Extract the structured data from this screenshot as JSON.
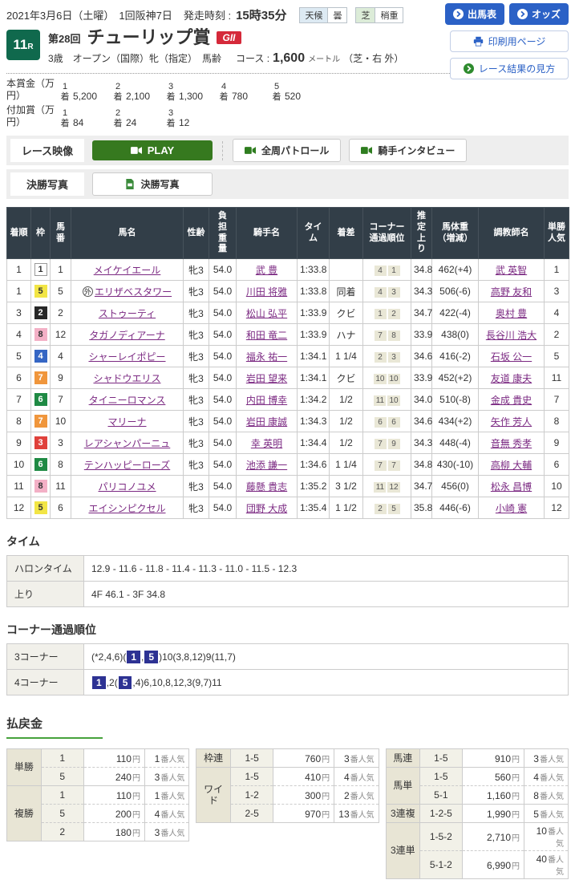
{
  "header": {
    "date": "2021年3月6日（土曜）",
    "meet": "1回阪神7日",
    "start_label": "発走時刻 :",
    "start_time": "15時35分",
    "weather_label": "天候",
    "weather_value": "曇",
    "turf_label": "芝",
    "turf_value": "稍重",
    "buttons": {
      "entries": "出馬表",
      "odds": "オッズ",
      "print": "印刷用ページ",
      "guide": "レース結果の見方"
    }
  },
  "race": {
    "number": "11",
    "r": "R",
    "edition": "第28回",
    "title": "チューリップ賞",
    "grade": "GII",
    "conditions": "3歳　オープン（国際）牝（指定）　馬齢",
    "course_label": "コース :",
    "distance": "1,600",
    "unit": "メートル",
    "detail": "（芝・右 外）"
  },
  "prize": {
    "main_label": "本賞金（万円）",
    "main": [
      {
        "place": "1\n着",
        "value": "5,200"
      },
      {
        "place": "2\n着",
        "value": "2,100"
      },
      {
        "place": "3\n着",
        "value": "1,300"
      },
      {
        "place": "4\n着",
        "value": "780"
      },
      {
        "place": "5\n着",
        "value": "520"
      }
    ],
    "addon_label": "付加賞（万円）",
    "addon": [
      {
        "place": "1\n着",
        "value": "84"
      },
      {
        "place": "2\n着",
        "value": "24"
      },
      {
        "place": "3\n着",
        "value": "12"
      }
    ]
  },
  "media": {
    "video_label": "レース映像",
    "play": "PLAY",
    "patrol": "全周パトロール",
    "interview": "騎手インタビュー",
    "photo_label": "決勝写真",
    "photo_button": "決勝写真"
  },
  "results": {
    "headers": [
      "着順",
      "枠",
      "馬\n番",
      "馬名",
      "性齢",
      "負\n担\n重\n量",
      "騎手名",
      "タイ\nム",
      "着差",
      "コーナー\n通過順位",
      "推\n定\n上\nり",
      "馬体重\n（増減）",
      "調教師名",
      "単勝\n人気"
    ],
    "rows": [
      {
        "pos": "1",
        "frame": "1",
        "num": "1",
        "mark": "",
        "horse": "メイケイエール",
        "sexage": "牝3",
        "weight": "54.0",
        "jockey": "武 豊",
        "time": "1:33.8",
        "margin": "",
        "corners": [
          "4",
          "1"
        ],
        "last3f": "34.8",
        "body": "462(+4)",
        "trainer": "武 英智",
        "pop": "1"
      },
      {
        "pos": "1",
        "frame": "5",
        "num": "5",
        "mark": "外",
        "horse": "エリザベスタワー",
        "sexage": "牝3",
        "weight": "54.0",
        "jockey": "川田 将雅",
        "time": "1:33.8",
        "margin": "同着",
        "corners": [
          "4",
          "3"
        ],
        "last3f": "34.3",
        "body": "506(-6)",
        "trainer": "高野 友和",
        "pop": "3"
      },
      {
        "pos": "3",
        "frame": "2",
        "num": "2",
        "mark": "",
        "horse": "ストゥーティ",
        "sexage": "牝3",
        "weight": "54.0",
        "jockey": "松山 弘平",
        "time": "1:33.9",
        "margin": "クビ",
        "corners": [
          "1",
          "2"
        ],
        "last3f": "34.7",
        "body": "422(-4)",
        "trainer": "奥村 豊",
        "pop": "4"
      },
      {
        "pos": "4",
        "frame": "8",
        "num": "12",
        "mark": "",
        "horse": "タガノディアーナ",
        "sexage": "牝3",
        "weight": "54.0",
        "jockey": "和田 竜二",
        "time": "1:33.9",
        "margin": "ハナ",
        "corners": [
          "7",
          "8"
        ],
        "last3f": "33.9",
        "body": "438(0)",
        "trainer": "長谷川 浩大",
        "pop": "2"
      },
      {
        "pos": "5",
        "frame": "4",
        "num": "4",
        "mark": "",
        "horse": "シャーレイポピー",
        "sexage": "牝3",
        "weight": "54.0",
        "jockey": "福永 祐一",
        "time": "1:34.1",
        "margin": "1 1/4",
        "corners": [
          "2",
          "3"
        ],
        "last3f": "34.6",
        "body": "416(-2)",
        "trainer": "石坂 公一",
        "pop": "5"
      },
      {
        "pos": "6",
        "frame": "7",
        "num": "9",
        "mark": "",
        "horse": "シャドウエリス",
        "sexage": "牝3",
        "weight": "54.0",
        "jockey": "岩田 望来",
        "time": "1:34.1",
        "margin": "クビ",
        "corners": [
          "10",
          "10"
        ],
        "last3f": "33.9",
        "body": "452(+2)",
        "trainer": "友道 康夫",
        "pop": "11"
      },
      {
        "pos": "7",
        "frame": "6",
        "num": "7",
        "mark": "",
        "horse": "タイニーロマンス",
        "sexage": "牝3",
        "weight": "54.0",
        "jockey": "内田 博幸",
        "time": "1:34.2",
        "margin": "1/2",
        "corners": [
          "11",
          "10"
        ],
        "last3f": "34.0",
        "body": "510(-8)",
        "trainer": "金成 貴史",
        "pop": "7"
      },
      {
        "pos": "8",
        "frame": "7",
        "num": "10",
        "mark": "",
        "horse": "マリーナ",
        "sexage": "牝3",
        "weight": "54.0",
        "jockey": "岩田 康誠",
        "time": "1:34.3",
        "margin": "1/2",
        "corners": [
          "6",
          "6"
        ],
        "last3f": "34.6",
        "body": "434(+2)",
        "trainer": "矢作 芳人",
        "pop": "8"
      },
      {
        "pos": "9",
        "frame": "3",
        "num": "3",
        "mark": "",
        "horse": "レアシャンパーニュ",
        "sexage": "牝3",
        "weight": "54.0",
        "jockey": "幸 英明",
        "time": "1:34.4",
        "margin": "1/2",
        "corners": [
          "7",
          "9"
        ],
        "last3f": "34.3",
        "body": "448(-4)",
        "trainer": "音無 秀孝",
        "pop": "9"
      },
      {
        "pos": "10",
        "frame": "6",
        "num": "8",
        "mark": "",
        "horse": "テンハッピーローズ",
        "sexage": "牝3",
        "weight": "54.0",
        "jockey": "池添 謙一",
        "time": "1:34.6",
        "margin": "1 1/4",
        "corners": [
          "7",
          "7"
        ],
        "last3f": "34.8",
        "body": "430(-10)",
        "trainer": "高柳 大輔",
        "pop": "6"
      },
      {
        "pos": "11",
        "frame": "8",
        "num": "11",
        "mark": "",
        "horse": "パリコノユメ",
        "sexage": "牝3",
        "weight": "54.0",
        "jockey": "藤懸 貴志",
        "time": "1:35.2",
        "margin": "3 1/2",
        "corners": [
          "11",
          "12"
        ],
        "last3f": "34.7",
        "body": "456(0)",
        "trainer": "松永 昌博",
        "pop": "10"
      },
      {
        "pos": "12",
        "frame": "5",
        "num": "6",
        "mark": "",
        "horse": "エイシンピクセル",
        "sexage": "牝3",
        "weight": "54.0",
        "jockey": "団野 大成",
        "time": "1:35.4",
        "margin": "1 1/2",
        "corners": [
          "2",
          "5"
        ],
        "last3f": "35.8",
        "body": "446(-6)",
        "trainer": "小崎 憲",
        "pop": "12"
      }
    ]
  },
  "time_section": {
    "title": "タイム",
    "rows": [
      {
        "label": "ハロンタイム",
        "value": "12.9 - 11.6 - 11.8 - 11.4 - 11.3 - 11.0 - 11.5 - 12.3"
      },
      {
        "label": "上り",
        "value": "4F 46.1 - 3F 34.8"
      }
    ]
  },
  "corner_section": {
    "title": "コーナー通過順位",
    "rows": [
      {
        "label": "3コーナー",
        "segments": [
          {
            "text": "(*2,4,6)("
          },
          {
            "hl": "1"
          },
          {
            "text": ","
          },
          {
            "hl": "5"
          },
          {
            "text": ")10(3,8,12)9(11,7)"
          }
        ]
      },
      {
        "label": "4コーナー",
        "segments": [
          {
            "hl": "1"
          },
          {
            "text": ",2("
          },
          {
            "hl": "5"
          },
          {
            "text": ",4)6,10,8,12,3(9,7)11"
          }
        ]
      }
    ]
  },
  "payout": {
    "title": "払戻金",
    "yen": "円",
    "pop_suffix": "番人気",
    "tables": [
      {
        "groups": [
          {
            "label": "単勝",
            "rows": [
              [
                "1",
                "110",
                "1"
              ],
              [
                "5",
                "240",
                "3"
              ]
            ]
          },
          {
            "label": "複勝",
            "rows": [
              [
                "1",
                "110",
                "1"
              ],
              [
                "5",
                "200",
                "4"
              ],
              [
                "2",
                "180",
                "3"
              ]
            ]
          }
        ]
      },
      {
        "groups": [
          {
            "label": "枠連",
            "rows": [
              [
                "1-5",
                "760",
                "3"
              ]
            ]
          },
          {
            "label": "ワイド",
            "rows": [
              [
                "1-5",
                "410",
                "4"
              ],
              [
                "1-2",
                "300",
                "2"
              ],
              [
                "2-5",
                "970",
                "13"
              ]
            ]
          }
        ]
      },
      {
        "groups": [
          {
            "label": "馬連",
            "rows": [
              [
                "1-5",
                "910",
                "3"
              ]
            ]
          },
          {
            "label": "馬単",
            "rows": [
              [
                "1-5",
                "560",
                "4"
              ],
              [
                "5-1",
                "1,160",
                "8"
              ]
            ]
          },
          {
            "label": "3連複",
            "rows": [
              [
                "1-2-5",
                "1,990",
                "5"
              ]
            ]
          },
          {
            "label": "3連単",
            "rows": [
              [
                "1-5-2",
                "2,710",
                "10"
              ],
              [
                "5-1-2",
                "6,990",
                "40"
              ]
            ]
          }
        ]
      }
    ]
  }
}
